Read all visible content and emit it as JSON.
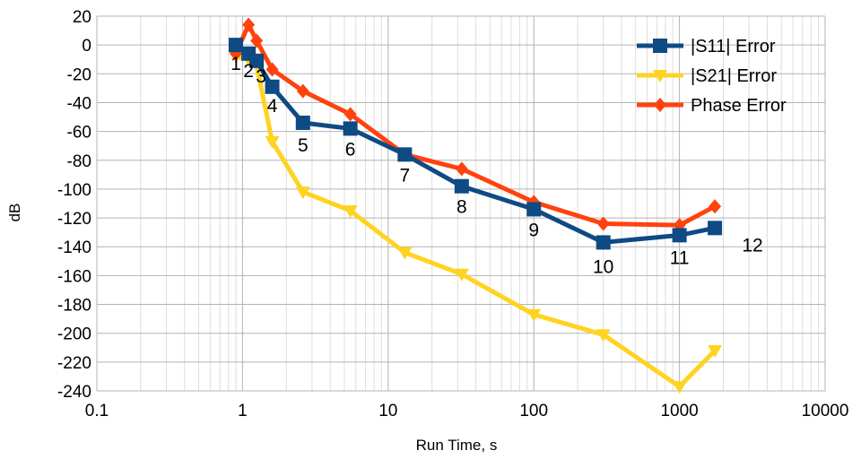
{
  "chart_data": {
    "type": "line",
    "xlabel": "Run Time, s",
    "ylabel": "dB",
    "xscale": "log",
    "xlim": [
      0.1,
      10000
    ],
    "ylim": [
      -240,
      20
    ],
    "yticks": [
      20,
      0,
      -20,
      -40,
      -60,
      -80,
      -100,
      -120,
      -140,
      -160,
      -180,
      -200,
      -220,
      -240
    ],
    "xticks": [
      0.1,
      1,
      10,
      100,
      1000,
      10000
    ],
    "xtick_labels": [
      "0.1",
      "1",
      "10",
      "100",
      "1000",
      "10000"
    ],
    "grid": true,
    "legend_position": "top-right",
    "series": [
      {
        "name": "|S11| Error",
        "color": "#0e4a84",
        "marker": "square",
        "x": [
          0.9,
          1.1,
          1.25,
          1.6,
          2.6,
          5.5,
          13,
          32,
          100,
          300,
          1000,
          1750
        ],
        "y": [
          0,
          -6,
          -11,
          -29,
          -54,
          -58,
          -76,
          -98,
          -114,
          -137,
          -132,
          -127
        ],
        "point_labels": [
          "1",
          "2",
          "3",
          "4",
          "5",
          "6",
          "7",
          "8",
          "9",
          "10",
          "11",
          "12"
        ]
      },
      {
        "name": "|S21| Error",
        "color": "#ffd320",
        "marker": "triangle-down",
        "x": [
          0.9,
          1.1,
          1.25,
          1.6,
          2.6,
          5.5,
          13,
          32,
          100,
          300,
          1000,
          1750
        ],
        "y": [
          -8,
          -10,
          -14,
          -67,
          -102,
          -115,
          -144,
          -159,
          -187,
          -201,
          -237,
          -212
        ]
      },
      {
        "name": "Phase Error",
        "color": "#ff420e",
        "marker": "diamond",
        "x": [
          0.9,
          1.1,
          1.25,
          1.6,
          2.6,
          5.5,
          13,
          32,
          100,
          300,
          1000,
          1750
        ],
        "y": [
          -6,
          14,
          3,
          -17,
          -32,
          -48,
          -76,
          -86,
          -109,
          -124,
          -125,
          -112
        ]
      }
    ]
  }
}
